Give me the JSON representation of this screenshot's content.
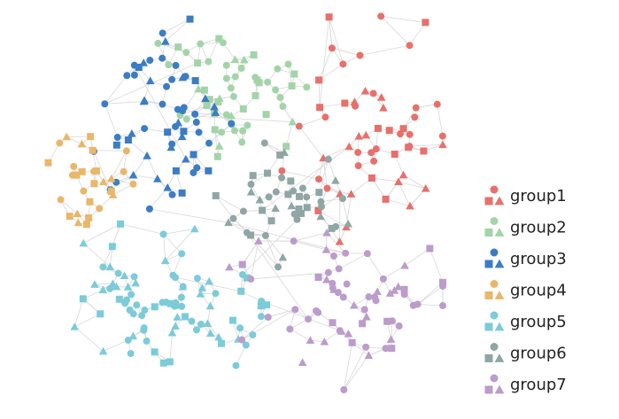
{
  "chart_data": {
    "type": "network",
    "series": [
      {
        "name": "group1",
        "color": "#e8706b"
      },
      {
        "name": "group2",
        "color": "#a3d4a8"
      },
      {
        "name": "group3",
        "color": "#3b7dc4"
      },
      {
        "name": "group4",
        "color": "#e9b76a"
      },
      {
        "name": "group5",
        "color": "#7ccbd9"
      },
      {
        "name": "group6",
        "color": "#8fa6a5"
      },
      {
        "name": "group7",
        "color": "#bb9ccb"
      }
    ]
  }
}
